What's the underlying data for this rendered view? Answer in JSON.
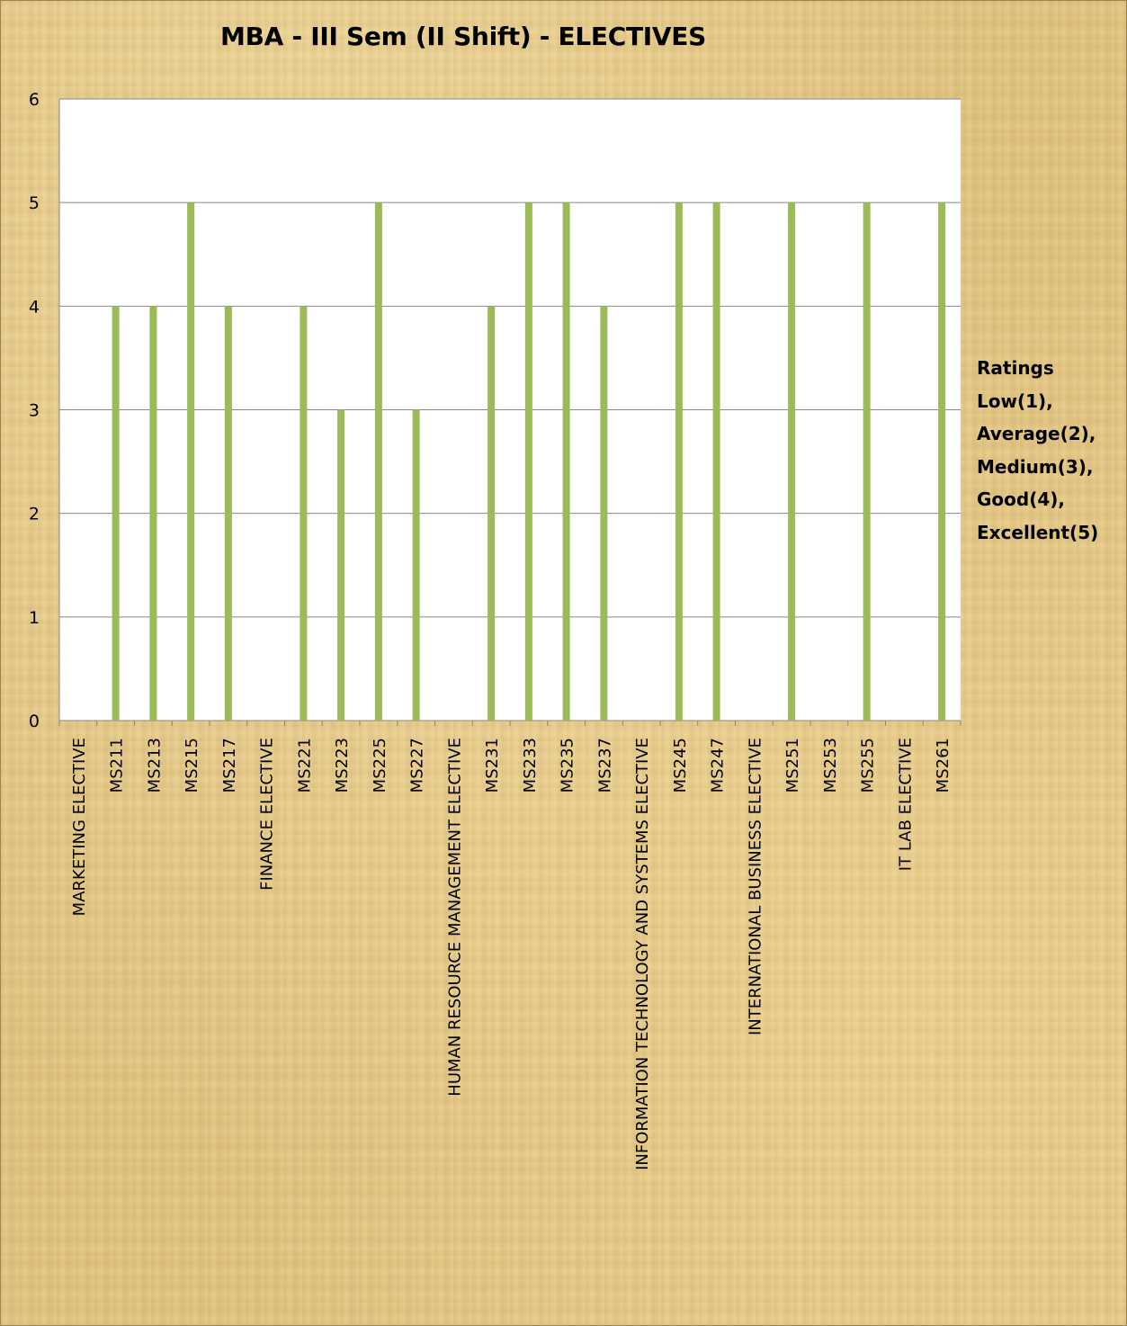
{
  "chart_data": {
    "type": "bar",
    "title": "MBA - III Sem (II Shift) - ELECTIVES",
    "categories": [
      "MARKETING ELECTIVE",
      "MS211",
      "MS213",
      "MS215",
      "MS217",
      "FINANCE ELECTIVE",
      "MS221",
      "MS223",
      "MS225",
      "MS227",
      "HUMAN RESOURCE MANAGEMENT ELECTIVE",
      "MS231",
      "MS233",
      "MS235",
      "MS237",
      "INFORMATION TECHNOLOGY AND SYSTEMS ELECTIVE",
      "MS245",
      "MS247",
      "INTERNATIONAL BUSINESS ELECTIVE",
      "MS251",
      "MS253",
      "MS255",
      "IT LAB ELECTIVE",
      "MS261"
    ],
    "values": [
      null,
      4,
      4,
      5,
      4,
      null,
      4,
      3,
      5,
      3,
      null,
      4,
      5,
      5,
      4,
      null,
      5,
      5,
      null,
      5,
      null,
      5,
      null,
      5
    ],
    "ylim": [
      0,
      6
    ],
    "yticks": [
      0,
      1,
      2,
      3,
      4,
      5,
      6
    ],
    "grid": true,
    "bar_color": "#9bbb59",
    "legend": {
      "placement": "right",
      "lines": [
        "Ratings",
        "Low(1),",
        "Average(2),",
        "Medium(3),",
        "Good(4),",
        "Excellent(5)"
      ]
    },
    "xlabel": "",
    "ylabel": ""
  }
}
